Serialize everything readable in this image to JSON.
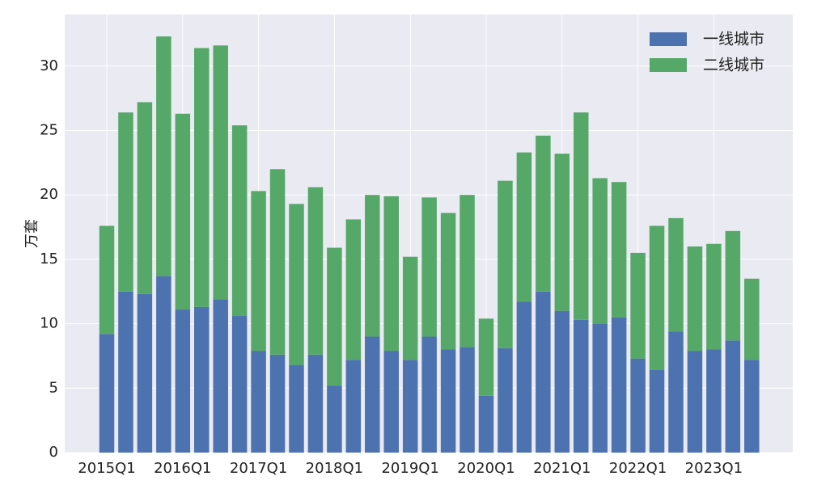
{
  "chart_data": {
    "type": "bar",
    "stacked": true,
    "ylabel": "万套",
    "ylim": [
      0,
      34
    ],
    "yticks": [
      0,
      5,
      10,
      15,
      20,
      25,
      30
    ],
    "grid": true,
    "legend_position": "top-right",
    "categories": [
      "2015Q1",
      "2015Q2",
      "2015Q3",
      "2015Q4",
      "2016Q1",
      "2016Q2",
      "2016Q3",
      "2016Q4",
      "2017Q1",
      "2017Q2",
      "2017Q3",
      "2017Q4",
      "2018Q1",
      "2018Q2",
      "2018Q3",
      "2018Q4",
      "2019Q1",
      "2019Q2",
      "2019Q3",
      "2019Q4",
      "2020Q1",
      "2020Q2",
      "2020Q3",
      "2020Q4",
      "2021Q1",
      "2021Q2",
      "2021Q3",
      "2021Q4",
      "2022Q1",
      "2022Q2",
      "2022Q3",
      "2022Q4",
      "2023Q1",
      "2023Q2",
      "2023Q3"
    ],
    "xtick_labels": [
      "2015Q1",
      "2016Q1",
      "2017Q1",
      "2018Q1",
      "2019Q1",
      "2020Q1",
      "2021Q1",
      "2022Q1",
      "2023Q1"
    ],
    "series": [
      {
        "name": "一线城市",
        "color": "#4c72b0",
        "values": [
          9.2,
          12.5,
          12.3,
          13.7,
          11.1,
          11.3,
          11.9,
          10.6,
          7.9,
          7.6,
          6.8,
          7.6,
          5.2,
          7.2,
          9.0,
          7.9,
          7.2,
          9.0,
          8.0,
          8.2,
          4.4,
          8.1,
          11.7,
          12.5,
          11.0,
          10.3,
          10.0,
          10.5,
          7.3,
          6.4,
          9.4,
          7.9,
          8.0,
          8.7,
          7.2
        ]
      },
      {
        "name": "二线城市",
        "color": "#55a868",
        "values": [
          8.4,
          13.9,
          14.9,
          18.6,
          15.2,
          20.1,
          19.7,
          14.8,
          12.4,
          14.4,
          12.5,
          13.0,
          10.7,
          10.9,
          11.0,
          12.0,
          8.0,
          10.8,
          10.6,
          11.8,
          6.0,
          13.0,
          11.6,
          12.1,
          12.2,
          16.1,
          11.3,
          10.5,
          8.2,
          11.2,
          8.8,
          8.1,
          8.2,
          8.5,
          6.3
        ]
      }
    ]
  }
}
